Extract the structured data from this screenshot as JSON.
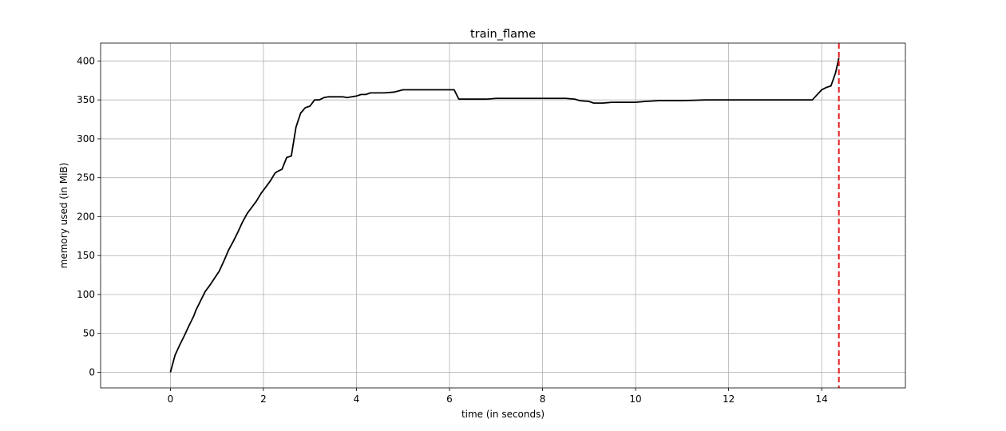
{
  "chart_data": {
    "type": "line",
    "title": "train_flame",
    "xlabel": "time (in seconds)",
    "ylabel": "memory used (in MiB)",
    "xlim": [
      -1.5,
      15.8
    ],
    "ylim": [
      -20,
      423
    ],
    "xticks": [
      0,
      2,
      4,
      6,
      8,
      10,
      12,
      14
    ],
    "yticks": [
      0,
      50,
      100,
      150,
      200,
      250,
      300,
      350,
      400
    ],
    "grid": true,
    "series": [
      {
        "color": "#000000",
        "x": [
          0,
          0.1,
          0.2,
          0.3,
          0.4,
          0.5,
          0.55,
          0.65,
          0.75,
          0.85,
          0.95,
          1.05,
          1.15,
          1.25,
          1.35,
          1.45,
          1.55,
          1.65,
          1.75,
          1.85,
          1.95,
          2.05,
          2.15,
          2.25,
          2.3,
          2.4,
          2.5,
          2.6,
          2.7,
          2.8,
          2.9,
          3.0,
          3.1,
          3.2,
          3.3,
          3.4,
          3.5,
          3.6,
          3.7,
          3.8,
          3.9,
          4.0,
          4.1,
          4.2,
          4.3,
          4.4,
          4.6,
          4.8,
          5.0,
          5.2,
          5.4,
          5.6,
          5.8,
          6.0,
          6.1,
          6.2,
          6.4,
          6.6,
          6.8,
          7.0,
          7.5,
          8.0,
          8.5,
          8.7,
          8.8,
          9.0,
          9.1,
          9.3,
          9.5,
          9.8,
          10.0,
          10.2,
          10.5,
          11.0,
          11.5,
          12.0,
          12.5,
          13.0,
          13.5,
          13.8,
          14.0,
          14.1,
          14.2,
          14.3,
          14.37
        ],
        "y": [
          0,
          22,
          35,
          47,
          60,
          72,
          80,
          92,
          104,
          112,
          121,
          130,
          143,
          157,
          168,
          180,
          193,
          204,
          212,
          220,
          230,
          238,
          246,
          256,
          258,
          261,
          276,
          278,
          315,
          333,
          340,
          342,
          350,
          350,
          353,
          354,
          354,
          354,
          354,
          353,
          354,
          355,
          357,
          357,
          359,
          359,
          359,
          360,
          363,
          363,
          363,
          363,
          363,
          363,
          363,
          351,
          351,
          351,
          351,
          352,
          352,
          352,
          352,
          351,
          349,
          348,
          346,
          346,
          347,
          347,
          347,
          348,
          349,
          349,
          350,
          350,
          350,
          350,
          350,
          350,
          363,
          366,
          368,
          385,
          404
        ]
      }
    ],
    "marker_line": {
      "x": 14.37,
      "color": "#e41a1c",
      "style": "dashed"
    }
  }
}
